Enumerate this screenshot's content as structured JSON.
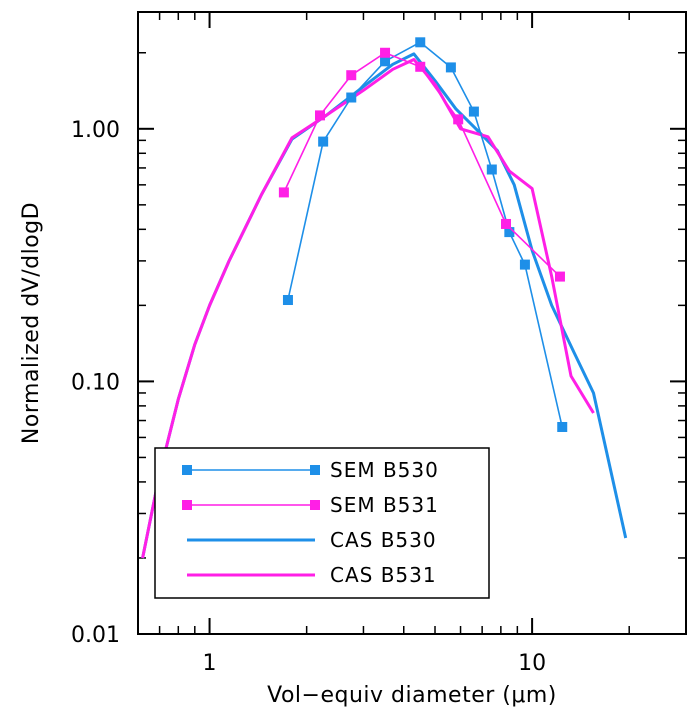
{
  "chart_data": {
    "type": "line",
    "xlabel": "Vol−equiv diameter (μm)",
    "ylabel": "Normalized dV/dlogD",
    "xscale": "log",
    "yscale": "log",
    "xlim": [
      0.6,
      30
    ],
    "ylim": [
      0.01,
      2.9
    ],
    "x_ticks": [
      {
        "value": 1,
        "label": "1"
      },
      {
        "value": 10,
        "label": "10"
      }
    ],
    "y_ticks": [
      {
        "value": 0.01,
        "label": "0.01"
      },
      {
        "value": 0.1,
        "label": "0.10"
      },
      {
        "value": 1,
        "label": "1.00"
      }
    ],
    "grid": false,
    "legend_position": "bottom-left",
    "series": [
      {
        "name": "SEM  B530",
        "color": "#1e8fe8",
        "style": "thin-line-square-markers",
        "x": [
          1.75,
          2.25,
          2.75,
          3.5,
          4.5,
          5.6,
          6.6,
          7.5,
          8.5,
          9.5,
          12.4
        ],
        "y": [
          0.21,
          0.89,
          1.33,
          1.85,
          2.2,
          1.75,
          1.17,
          0.69,
          0.39,
          0.29,
          0.066
        ]
      },
      {
        "name": "SEM  B531",
        "color": "#ff1fe6",
        "style": "thin-line-square-markers",
        "x": [
          1.7,
          2.2,
          2.75,
          3.5,
          4.5,
          5.9,
          8.3,
          12.2
        ],
        "y": [
          0.56,
          1.13,
          1.63,
          2.0,
          1.76,
          1.09,
          0.42,
          0.26
        ]
      },
      {
        "name": "CAS  B530",
        "color": "#1e8fe8",
        "style": "thick-line",
        "x": [
          0.62,
          0.7,
          0.8,
          0.9,
          1.0,
          1.15,
          1.45,
          1.8,
          2.3,
          3.0,
          3.7,
          4.3,
          5.0,
          5.8,
          6.8,
          7.8,
          8.8,
          10.0,
          11.5,
          13.5,
          15.5,
          19.5
        ],
        "y": [
          0.02,
          0.043,
          0.085,
          0.14,
          0.2,
          0.3,
          0.55,
          0.91,
          1.13,
          1.47,
          1.8,
          1.98,
          1.55,
          1.2,
          0.98,
          0.82,
          0.6,
          0.33,
          0.2,
          0.13,
          0.09,
          0.024
        ]
      },
      {
        "name": "CAS  B531",
        "color": "#ff1fe6",
        "style": "thick-line",
        "x": [
          0.62,
          0.7,
          0.8,
          0.9,
          1.0,
          1.15,
          1.45,
          1.8,
          2.3,
          3.0,
          3.7,
          4.3,
          5.0,
          6.0,
          7.3,
          8.5,
          10.0,
          11.5,
          13.2,
          15.5
        ],
        "y": [
          0.02,
          0.043,
          0.085,
          0.14,
          0.2,
          0.3,
          0.55,
          0.92,
          1.13,
          1.42,
          1.72,
          1.88,
          1.5,
          1.0,
          0.93,
          0.68,
          0.58,
          0.26,
          0.105,
          0.075
        ]
      }
    ]
  }
}
